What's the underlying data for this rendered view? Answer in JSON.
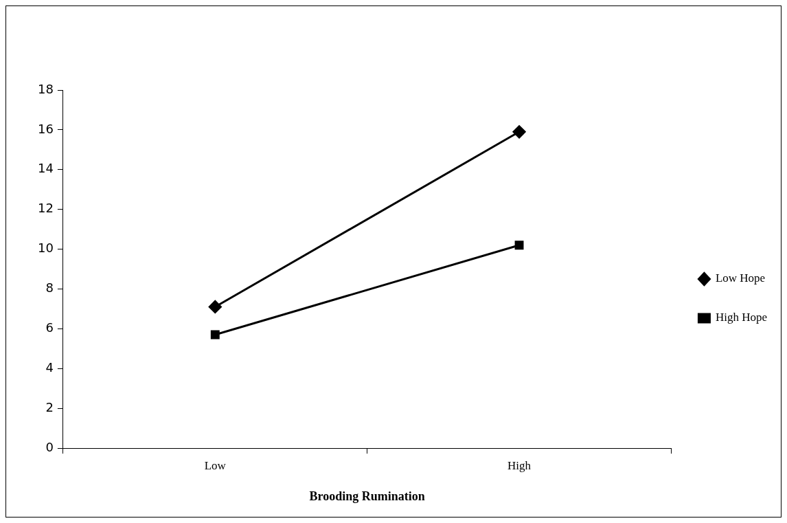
{
  "chart_data": {
    "type": "line",
    "xlabel": "Brooding Rumination",
    "categories": [
      "Low",
      "High"
    ],
    "series": [
      {
        "name": "Low Hope",
        "color": "#000000",
        "values": [
          7.1,
          15.9
        ],
        "marker": "diamond"
      },
      {
        "name": "High Hope",
        "color": "#000000",
        "values": [
          5.7,
          10.2
        ],
        "marker": "square"
      }
    ],
    "ylim": [
      0,
      18
    ],
    "yticks": [
      0,
      2,
      4,
      6,
      8,
      10,
      12,
      14,
      16,
      18
    ],
    "grid": false,
    "legend": "right",
    "line_style": "solid"
  }
}
